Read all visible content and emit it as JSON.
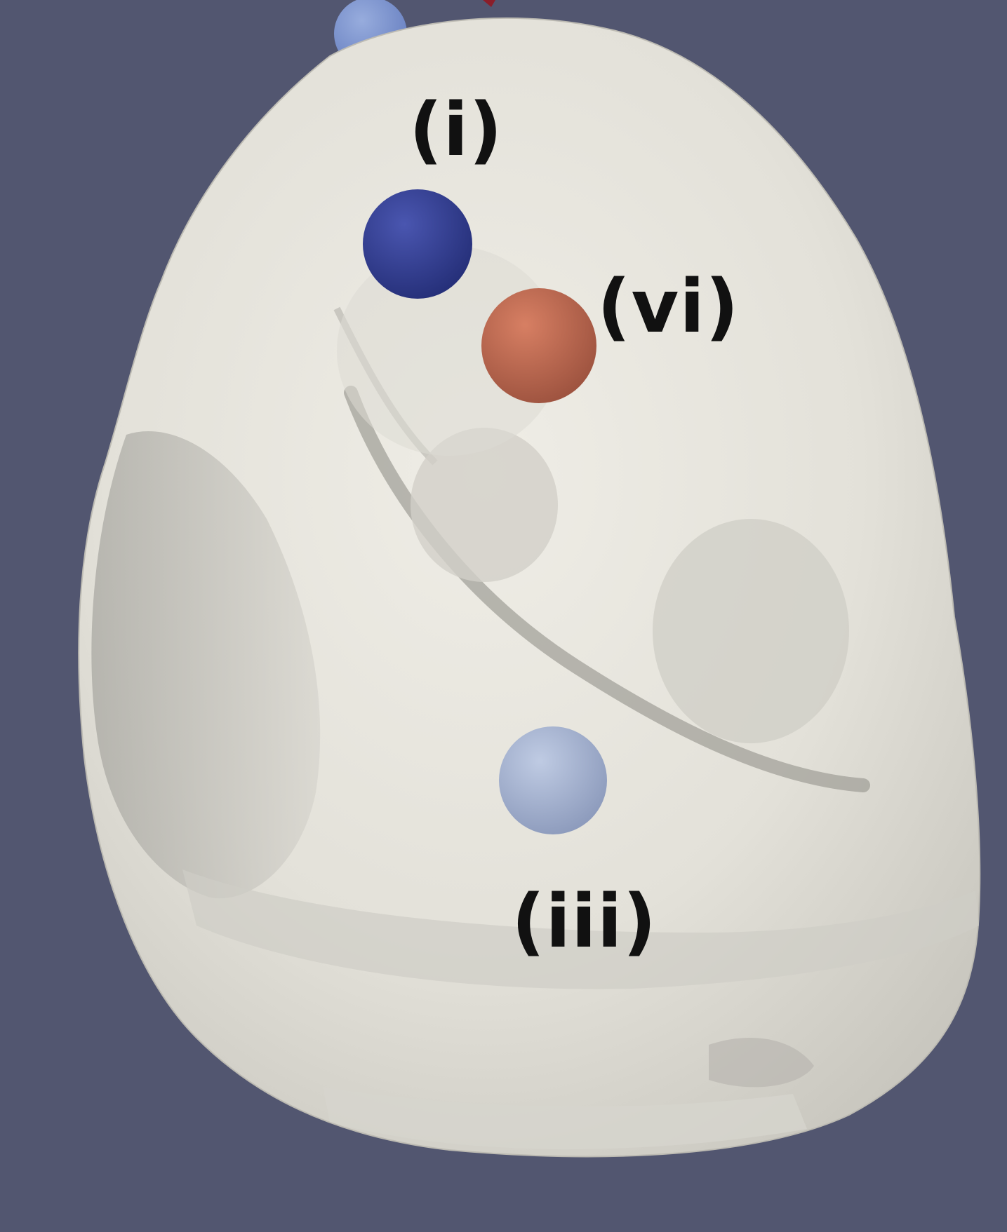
{
  "scene": {
    "background_color": "#525670",
    "surface_color": "#e6e4dc",
    "labels": {
      "i": "(i)",
      "vi": "(vi)",
      "iii": "(iii)"
    },
    "markers": [
      {
        "id": "top-left-partial",
        "color": "#7f98d3"
      },
      {
        "id": "i",
        "color": "#313c92"
      },
      {
        "id": "vi",
        "color": "#c46c52"
      },
      {
        "id": "iii",
        "color": "#a8b6d4"
      }
    ]
  }
}
